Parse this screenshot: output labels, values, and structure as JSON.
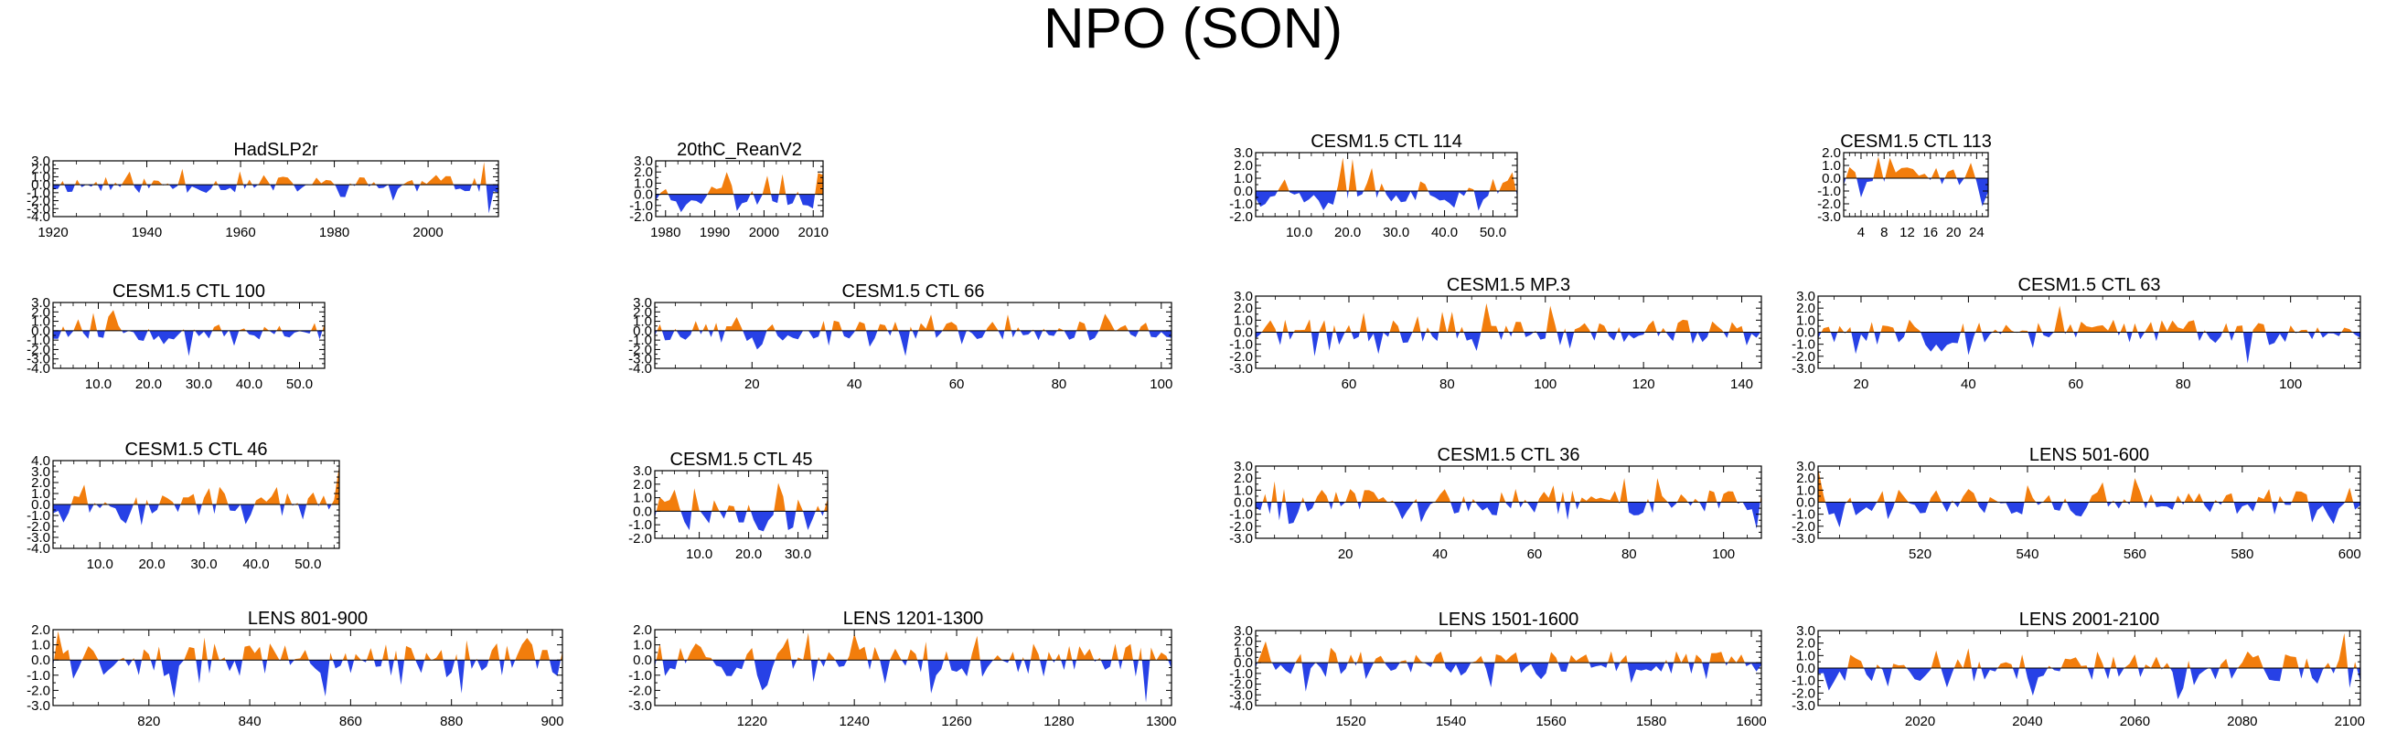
{
  "title": "NPO (SON)",
  "colors": {
    "positive": "#f27d0c",
    "negative": "#2741e6",
    "axis": "#000000"
  },
  "chart_data": [
    {
      "type": "area",
      "title": "HadSLP2r",
      "xlim": [
        1920,
        2015
      ],
      "ylim": [
        -4,
        3
      ],
      "xticks": [
        1920,
        1940,
        1960,
        1980,
        2000
      ],
      "xtick_labels": [
        "1920",
        "1940",
        "1960",
        "1980",
        "2000"
      ],
      "yticks": [
        -4,
        -3,
        -2,
        -1,
        0,
        1,
        2,
        3
      ],
      "ytick_labels": [
        "-4.0",
        "-3.0",
        "-2.0",
        "-1.0",
        "0.0",
        "1.0",
        "2.0",
        "3.0"
      ],
      "n": 94,
      "seed": 11,
      "extremes": [
        [
          1948,
          2.0
        ],
        [
          1993,
          -2.0
        ],
        [
          2012,
          3.0
        ],
        [
          2013,
          -3.6
        ]
      ]
    },
    {
      "type": "area",
      "title": "20thC_ReanV2",
      "xlim": [
        1978,
        2012
      ],
      "ylim": [
        -2,
        3
      ],
      "xticks": [
        1980,
        1990,
        2000,
        2010
      ],
      "xtick_labels": [
        "1980",
        "1990",
        "2000",
        "2010"
      ],
      "yticks": [
        -2,
        -1,
        0,
        1,
        2,
        3
      ],
      "ytick_labels": [
        "-2.0",
        "-1.0",
        "0.0",
        "1.0",
        "2.0",
        "3.0"
      ],
      "n": 34,
      "seed": 23,
      "extremes": [
        [
          1992,
          2.0
        ],
        [
          2004,
          1.8
        ],
        [
          2011,
          1.9
        ],
        [
          1983,
          -1.6
        ],
        [
          1995,
          -1.5
        ]
      ]
    },
    {
      "type": "area",
      "title": "CESM1.5 CTL 114",
      "xlim": [
        1,
        55
      ],
      "ylim": [
        -2,
        3
      ],
      "xticks": [
        10,
        20,
        30,
        40,
        50
      ],
      "xtick_labels": [
        "10.0",
        "20.0",
        "30.0",
        "40.0",
        "50.0"
      ],
      "yticks": [
        -2,
        -1,
        0,
        1,
        2,
        3
      ],
      "ytick_labels": [
        "-2.0",
        "-1.0",
        "0.0",
        "1.0",
        "2.0",
        "3.0"
      ],
      "n": 55,
      "seed": 37,
      "extremes": [
        [
          19,
          2.6
        ],
        [
          21,
          2.5
        ],
        [
          25,
          1.8
        ],
        [
          15,
          -1.5
        ],
        [
          42,
          -1.3
        ]
      ]
    },
    {
      "type": "area",
      "title": "CESM1.5 CTL 113",
      "xlim": [
        1,
        26
      ],
      "ylim": [
        -3,
        2
      ],
      "xticks": [
        4,
        8,
        12,
        16,
        20,
        24
      ],
      "xtick_labels": [
        "4",
        "8",
        "12",
        "16",
        "20",
        "24"
      ],
      "yticks": [
        -3,
        -2,
        -1,
        0,
        1,
        2
      ],
      "ytick_labels": [
        "-3.0",
        "-2.0",
        "-1.0",
        "0.0",
        "1.0",
        "2.0"
      ],
      "n": 26,
      "seed": 41,
      "extremes": [
        [
          7,
          1.7
        ],
        [
          9,
          1.6
        ],
        [
          4,
          -1.5
        ],
        [
          25,
          -2.2
        ]
      ]
    },
    {
      "type": "area",
      "title": "CESM1.5 CTL 100",
      "xlim": [
        1,
        55
      ],
      "ylim": [
        -4,
        3
      ],
      "xticks": [
        10,
        20,
        30,
        40,
        50
      ],
      "xtick_labels": [
        "10.0",
        "20.0",
        "30.0",
        "40.0",
        "50.0"
      ],
      "yticks": [
        -4,
        -3,
        -2,
        -1,
        0,
        1,
        2,
        3
      ],
      "ytick_labels": [
        "-4.0",
        "-3.0",
        "-2.0",
        "-1.0",
        "0.0",
        "1.0",
        "2.0",
        "3.0"
      ],
      "n": 55,
      "seed": 53,
      "extremes": [
        [
          9,
          1.9
        ],
        [
          13,
          2.2
        ],
        [
          28,
          -2.7
        ],
        [
          37,
          -1.6
        ]
      ]
    },
    {
      "type": "area",
      "title": "CESM1.5 CTL 66",
      "xlim": [
        1,
        102
      ],
      "ylim": [
        -4,
        3
      ],
      "xticks": [
        20,
        40,
        60,
        80,
        100
      ],
      "xtick_labels": [
        "20",
        "40",
        "60",
        "80",
        "100"
      ],
      "yticks": [
        -4,
        -3,
        -2,
        -1,
        0,
        1,
        2,
        3
      ],
      "ytick_labels": [
        "-4.0",
        "-3.0",
        "-2.0",
        "-1.0",
        "0.0",
        "1.0",
        "2.0",
        "3.0"
      ],
      "n": 102,
      "seed": 67,
      "extremes": [
        [
          89,
          1.8
        ],
        [
          50,
          -2.7
        ],
        [
          21,
          -2.0
        ],
        [
          43,
          -1.7
        ]
      ]
    },
    {
      "type": "area",
      "title": "CESM1.5 MP.3",
      "xlim": [
        41,
        144
      ],
      "ylim": [
        -3,
        3
      ],
      "xticks": [
        60,
        80,
        100,
        120,
        140
      ],
      "xtick_labels": [
        "60",
        "80",
        "100",
        "120",
        "140"
      ],
      "yticks": [
        -3,
        -2,
        -1,
        0,
        1,
        2,
        3
      ],
      "ytick_labels": [
        "-3.0",
        "-2.0",
        "-1.0",
        "0.0",
        "1.0",
        "2.0",
        "3.0"
      ],
      "n": 104,
      "seed": 71,
      "extremes": [
        [
          88,
          2.4
        ],
        [
          101,
          2.2
        ],
        [
          53,
          -2.0
        ],
        [
          66,
          -1.8
        ]
      ]
    },
    {
      "type": "area",
      "title": "CESM1.5 CTL 63",
      "xlim": [
        12,
        113
      ],
      "ylim": [
        -3,
        3
      ],
      "xticks": [
        20,
        40,
        60,
        80,
        100
      ],
      "xtick_labels": [
        "20",
        "40",
        "60",
        "80",
        "100"
      ],
      "yticks": [
        -3,
        -2,
        -1,
        0,
        1,
        2,
        3
      ],
      "ytick_labels": [
        "-3.0",
        "-2.0",
        "-1.0",
        "0.0",
        "1.0",
        "2.0",
        "3.0"
      ],
      "n": 102,
      "seed": 83,
      "extremes": [
        [
          57,
          2.2
        ],
        [
          92,
          -2.6
        ],
        [
          40,
          -1.9
        ],
        [
          19,
          -1.8
        ]
      ]
    },
    {
      "type": "area",
      "title": "CESM1.5 CTL 46",
      "xlim": [
        1,
        56
      ],
      "ylim": [
        -4,
        4
      ],
      "xticks": [
        10,
        20,
        30,
        40,
        50
      ],
      "xtick_labels": [
        "10.0",
        "20.0",
        "30.0",
        "40.0",
        "50.0"
      ],
      "yticks": [
        -4,
        -3,
        -2,
        -1,
        0,
        1,
        2,
        3,
        4
      ],
      "ytick_labels": [
        "-4.0",
        "-3.0",
        "-2.0",
        "-1.0",
        "0.0",
        "1.0",
        "2.0",
        "3.0",
        "4.0"
      ],
      "n": 56,
      "seed": 97,
      "extremes": [
        [
          56,
          3.6
        ],
        [
          7,
          1.8
        ],
        [
          38,
          -1.8
        ],
        [
          18,
          -1.9
        ]
      ]
    },
    {
      "type": "area",
      "title": "CESM1.5 CTL 45",
      "xlim": [
        1,
        36
      ],
      "ylim": [
        -2,
        3
      ],
      "xticks": [
        10,
        20,
        30
      ],
      "xtick_labels": [
        "10.0",
        "20.0",
        "30.0"
      ],
      "yticks": [
        -2,
        -1,
        0,
        1,
        2,
        3
      ],
      "ytick_labels": [
        "-2.0",
        "-1.0",
        "0.0",
        "1.0",
        "2.0",
        "3.0"
      ],
      "n": 36,
      "seed": 101,
      "extremes": [
        [
          5,
          1.6
        ],
        [
          9,
          1.7
        ],
        [
          26,
          2.1
        ],
        [
          8,
          -1.4
        ],
        [
          29,
          -1.2
        ]
      ]
    },
    {
      "type": "area",
      "title": "CESM1.5 CTL 36",
      "xlim": [
        1,
        108
      ],
      "ylim": [
        -3,
        3
      ],
      "xticks": [
        20,
        40,
        60,
        80,
        100
      ],
      "xtick_labels": [
        "20",
        "40",
        "60",
        "80",
        "100"
      ],
      "yticks": [
        -3,
        -2,
        -1,
        0,
        1,
        2,
        3
      ],
      "ytick_labels": [
        "-3.0",
        "-2.0",
        "-1.0",
        "0.0",
        "1.0",
        "2.0",
        "3.0"
      ],
      "n": 108,
      "seed": 113,
      "extremes": [
        [
          79,
          2.0
        ],
        [
          86,
          2.0
        ],
        [
          107,
          -2.2
        ],
        [
          8,
          -1.8
        ]
      ]
    },
    {
      "type": "area",
      "title": "LENS 501-600",
      "xlim": [
        501,
        602
      ],
      "ylim": [
        -3,
        3
      ],
      "xticks": [
        520,
        540,
        560,
        580,
        600
      ],
      "xtick_labels": [
        "520",
        "540",
        "560",
        "580",
        "600"
      ],
      "yticks": [
        -3,
        -2,
        -1,
        0,
        1,
        2,
        3
      ],
      "ytick_labels": [
        "-3.0",
        "-2.0",
        "-1.0",
        "0.0",
        "1.0",
        "2.0",
        "3.0"
      ],
      "n": 102,
      "seed": 127,
      "extremes": [
        [
          501,
          3.0
        ],
        [
          560,
          2.0
        ],
        [
          505,
          -2.1
        ],
        [
          597,
          -1.8
        ]
      ]
    },
    {
      "type": "area",
      "title": "LENS 801-900",
      "xlim": [
        801,
        902
      ],
      "ylim": [
        -3,
        2
      ],
      "xticks": [
        820,
        840,
        860,
        880,
        900
      ],
      "xtick_labels": [
        "820",
        "840",
        "860",
        "880",
        "900"
      ],
      "yticks": [
        -3,
        -2,
        -1,
        0,
        1,
        2
      ],
      "ytick_labels": [
        "-3.0",
        "-2.0",
        "-1.0",
        "0.0",
        "1.0",
        "2.0"
      ],
      "n": 102,
      "seed": 131,
      "extremes": [
        [
          802,
          1.9
        ],
        [
          825,
          -2.5
        ],
        [
          855,
          -2.4
        ],
        [
          882,
          -2.2
        ]
      ]
    },
    {
      "type": "area",
      "title": "LENS 1201-1300",
      "xlim": [
        1201,
        1302
      ],
      "ylim": [
        -3,
        2
      ],
      "xticks": [
        1220,
        1240,
        1260,
        1280,
        1300
      ],
      "xtick_labels": [
        "1220",
        "1240",
        "1260",
        "1280",
        "1300"
      ],
      "yticks": [
        -3,
        -2,
        -1,
        0,
        1,
        2
      ],
      "ytick_labels": [
        "-3.0",
        "-2.0",
        "-1.0",
        "0.0",
        "1.0",
        "2.0"
      ],
      "n": 102,
      "seed": 139,
      "extremes": [
        [
          1231,
          1.8
        ],
        [
          1297,
          -2.8
        ],
        [
          1255,
          -2.2
        ],
        [
          1222,
          -2.0
        ]
      ]
    },
    {
      "type": "area",
      "title": "LENS 1501-1600",
      "xlim": [
        1501,
        1602
      ],
      "ylim": [
        -4,
        3
      ],
      "xticks": [
        1520,
        1540,
        1560,
        1580,
        1600
      ],
      "xtick_labels": [
        "1520",
        "1540",
        "1560",
        "1580",
        "1600"
      ],
      "yticks": [
        -4,
        -3,
        -2,
        -1,
        0,
        1,
        2,
        3
      ],
      "ytick_labels": [
        "-4.0",
        "-3.0",
        "-2.0",
        "-1.0",
        "0.0",
        "1.0",
        "2.0",
        "3.0"
      ],
      "n": 102,
      "seed": 149,
      "extremes": [
        [
          1503,
          2.0
        ],
        [
          1511,
          -2.7
        ],
        [
          1548,
          -2.3
        ],
        [
          1576,
          -1.9
        ]
      ]
    },
    {
      "type": "area",
      "title": "LENS 2001-2100",
      "xlim": [
        2001,
        2102
      ],
      "ylim": [
        -3,
        3
      ],
      "xticks": [
        2020,
        2040,
        2060,
        2080,
        2100
      ],
      "xtick_labels": [
        "2020",
        "2040",
        "2060",
        "2080",
        "2100"
      ],
      "yticks": [
        -3,
        -2,
        -1,
        0,
        1,
        2,
        3
      ],
      "ytick_labels": [
        "-3.0",
        "-2.0",
        "-1.0",
        "0.0",
        "1.0",
        "2.0",
        "3.0"
      ],
      "n": 102,
      "seed": 157,
      "extremes": [
        [
          2099,
          2.8
        ],
        [
          2068,
          -2.5
        ],
        [
          2041,
          -2.2
        ],
        [
          2003,
          -1.8
        ]
      ]
    }
  ]
}
